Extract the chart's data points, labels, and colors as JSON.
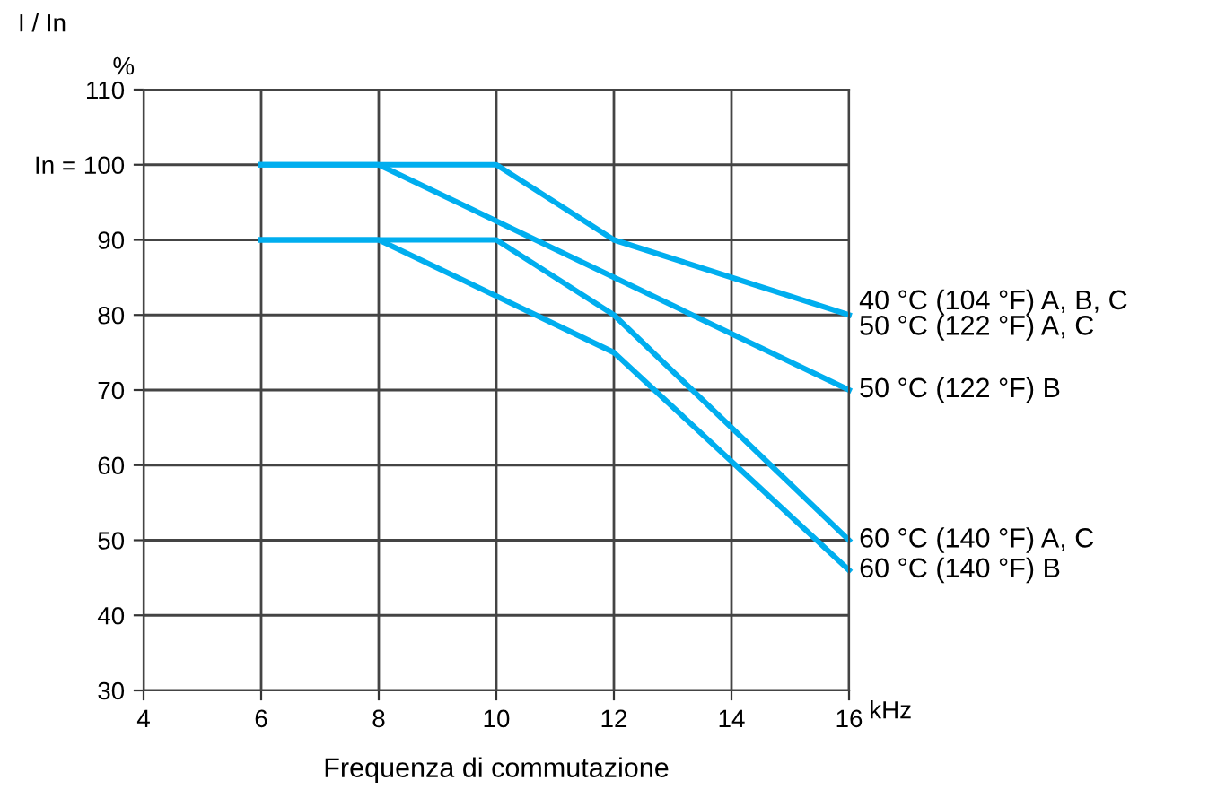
{
  "chart_data": {
    "type": "line",
    "xlabel": "Frequenza di commutazione",
    "ylabel": "I / In",
    "xlim": [
      4,
      16
    ],
    "xticks": [
      4,
      6,
      8,
      10,
      12,
      14,
      16
    ],
    "ylim": [
      30,
      110
    ],
    "yticks": [
      30,
      40,
      50,
      60,
      70,
      80,
      90,
      {
        "value": 100,
        "label": "In = 100"
      },
      110
    ],
    "grid": true,
    "legend": false,
    "marker": "none",
    "line_style": "solid",
    "series": [
      {
        "name": "40 °C (104 °F) A, B, C",
        "color": "#00aeef",
        "x": [
          6,
          10,
          12,
          16
        ],
        "values": [
          100,
          100,
          90,
          80
        ]
      },
      {
        "name": "50 °C (122 °F) B",
        "color": "#00aeef",
        "x": [
          6,
          8,
          16
        ],
        "values": [
          100,
          100,
          70
        ]
      },
      {
        "name": "60 °C (140 °F) A, C",
        "color": "#00aeef",
        "x": [
          6,
          10,
          12,
          16
        ],
        "values": [
          90,
          90,
          80,
          50
        ]
      },
      {
        "name": "60 °C (140 °F) B",
        "color": "#00aeef",
        "x": [
          6,
          8,
          12,
          16
        ],
        "values": [
          90,
          90,
          75,
          46
        ]
      }
    ],
    "annotations": [
      {
        "text": "50 °C (122 °F) A, C",
        "x": 16,
        "y": 80
      },
      "%",
      "kHz"
    ]
  }
}
